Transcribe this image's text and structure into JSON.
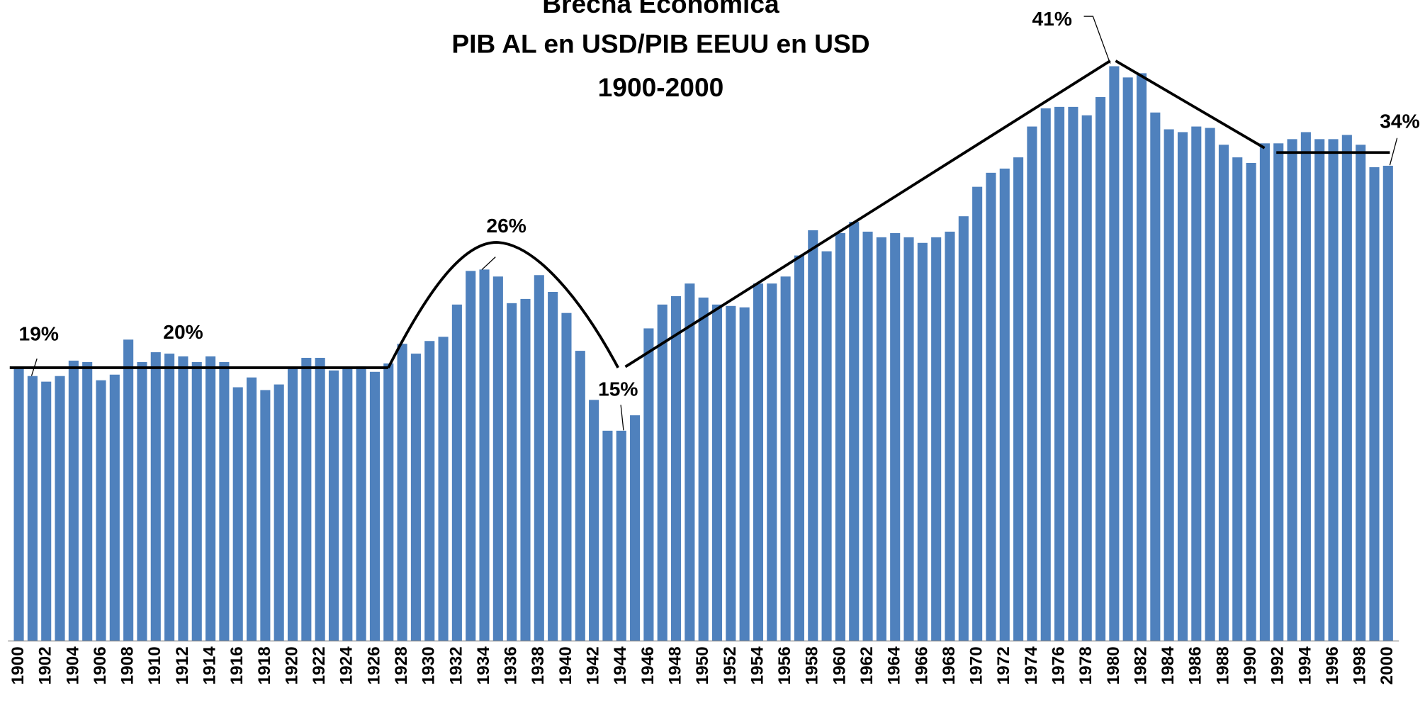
{
  "chart_data": {
    "type": "bar",
    "title": [
      "Brecha Económica",
      "PIB AL en USD/PIB EEUU en USD",
      "1900-2000"
    ],
    "categories": [
      "1900",
      null,
      "1902",
      null,
      "1904",
      null,
      "1906",
      null,
      "1908",
      null,
      "1910",
      null,
      "1912",
      null,
      "1914",
      null,
      "1916",
      null,
      "1918",
      null,
      "1920",
      null,
      "1922",
      null,
      "1924",
      null,
      "1926",
      null,
      "1928",
      null,
      "1930",
      null,
      "1932",
      null,
      "1934",
      null,
      "1936",
      null,
      "1938",
      null,
      "1940",
      null,
      "1942",
      null,
      "1944",
      null,
      "1946",
      null,
      "1948",
      null,
      "1950",
      null,
      "1952",
      null,
      "1954",
      null,
      "1956",
      null,
      "1958",
      null,
      "1960",
      null,
      "1962",
      null,
      "1964",
      null,
      "1966",
      null,
      "1968",
      null,
      "1970",
      null,
      "1972",
      null,
      "1974",
      null,
      "1976",
      null,
      "1978",
      null,
      "1980",
      null,
      "1982",
      null,
      "1984",
      null,
      "1986",
      null,
      "1988",
      null,
      "1990",
      null,
      "1992",
      null,
      "1994",
      null,
      "1996",
      null,
      "1998",
      null,
      "2000"
    ],
    "values": [
      19.5,
      18.9,
      18.5,
      18.9,
      20.0,
      19.9,
      18.6,
      19.0,
      21.5,
      19.9,
      20.6,
      20.5,
      20.3,
      19.9,
      20.3,
      19.9,
      18.1,
      18.8,
      17.9,
      18.3,
      19.5,
      20.2,
      20.2,
      19.3,
      19.5,
      19.6,
      19.2,
      19.8,
      21.2,
      20.5,
      21.4,
      21.7,
      24.0,
      26.4,
      26.5,
      26.0,
      24.1,
      24.4,
      26.1,
      24.9,
      23.4,
      20.7,
      17.2,
      15.0,
      15.0,
      16.1,
      22.3,
      24.0,
      24.6,
      25.5,
      24.5,
      24.0,
      23.9,
      23.8,
      25.5,
      25.5,
      26.0,
      27.5,
      29.3,
      27.8,
      29.1,
      29.9,
      29.2,
      28.8,
      29.1,
      28.8,
      28.4,
      28.8,
      29.2,
      30.3,
      32.4,
      33.4,
      33.7,
      34.5,
      36.7,
      38.0,
      38.1,
      38.1,
      37.5,
      38.8,
      41.0,
      40.2,
      40.5,
      37.7,
      36.5,
      36.3,
      36.7,
      36.6,
      35.4,
      34.5,
      34.1,
      35.5,
      35.5,
      35.8,
      36.3,
      35.8,
      35.8,
      36.1,
      35.4,
      33.8,
      33.9
    ],
    "color": "#4f81bd",
    "annotations": [
      "19%",
      "20%",
      "26%",
      "15%",
      "41%",
      "34%"
    ]
  }
}
